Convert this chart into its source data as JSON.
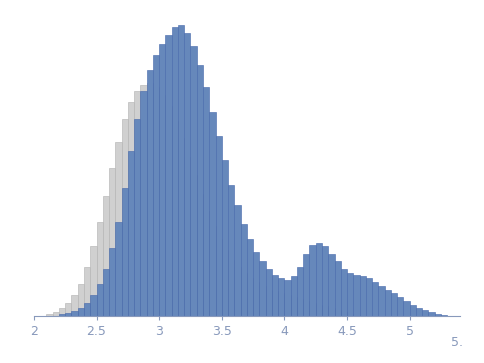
{
  "xlim": [
    2.0,
    5.4
  ],
  "ylim": [
    0,
    310
  ],
  "bin_width": 0.05,
  "blue_color": "#6688bb",
  "blue_edge": "#4466aa",
  "gray_color": "#d0d0d0",
  "gray_edge": "#b0b0b0",
  "blue_bins_start": 2.2,
  "blue_heights": [
    2,
    3,
    5,
    8,
    14,
    22,
    34,
    50,
    72,
    100,
    136,
    176,
    210,
    240,
    262,
    278,
    290,
    300,
    308,
    310,
    302,
    288,
    268,
    244,
    218,
    192,
    166,
    140,
    118,
    98,
    82,
    68,
    58,
    50,
    44,
    40,
    38,
    42,
    52,
    66,
    76,
    78,
    74,
    66,
    58,
    50,
    46,
    44,
    42,
    40,
    36,
    32,
    28,
    24,
    20,
    16,
    12,
    8,
    6,
    4,
    2,
    1
  ],
  "gray_bins_start": 2.1,
  "gray_heights": [
    2,
    4,
    8,
    14,
    22,
    34,
    52,
    74,
    100,
    128,
    158,
    186,
    210,
    228,
    240,
    246,
    248,
    244,
    236,
    224,
    208,
    190,
    170,
    150,
    130,
    112,
    96,
    82,
    70,
    60,
    52,
    46,
    40,
    36,
    32,
    28,
    26,
    24,
    22,
    20,
    18,
    16,
    14,
    12,
    10,
    8,
    6,
    4,
    2,
    1
  ],
  "background_color": "#ffffff",
  "tick_color": "#8899bb",
  "spine_color": "#8899bb",
  "xticks": [
    2.0,
    2.5,
    3.0,
    3.5,
    4.0,
    4.5,
    5.0
  ],
  "xtick_labels": [
    "2",
    "2.5",
    "3",
    "3.5",
    "4",
    "4.5",
    "5"
  ]
}
